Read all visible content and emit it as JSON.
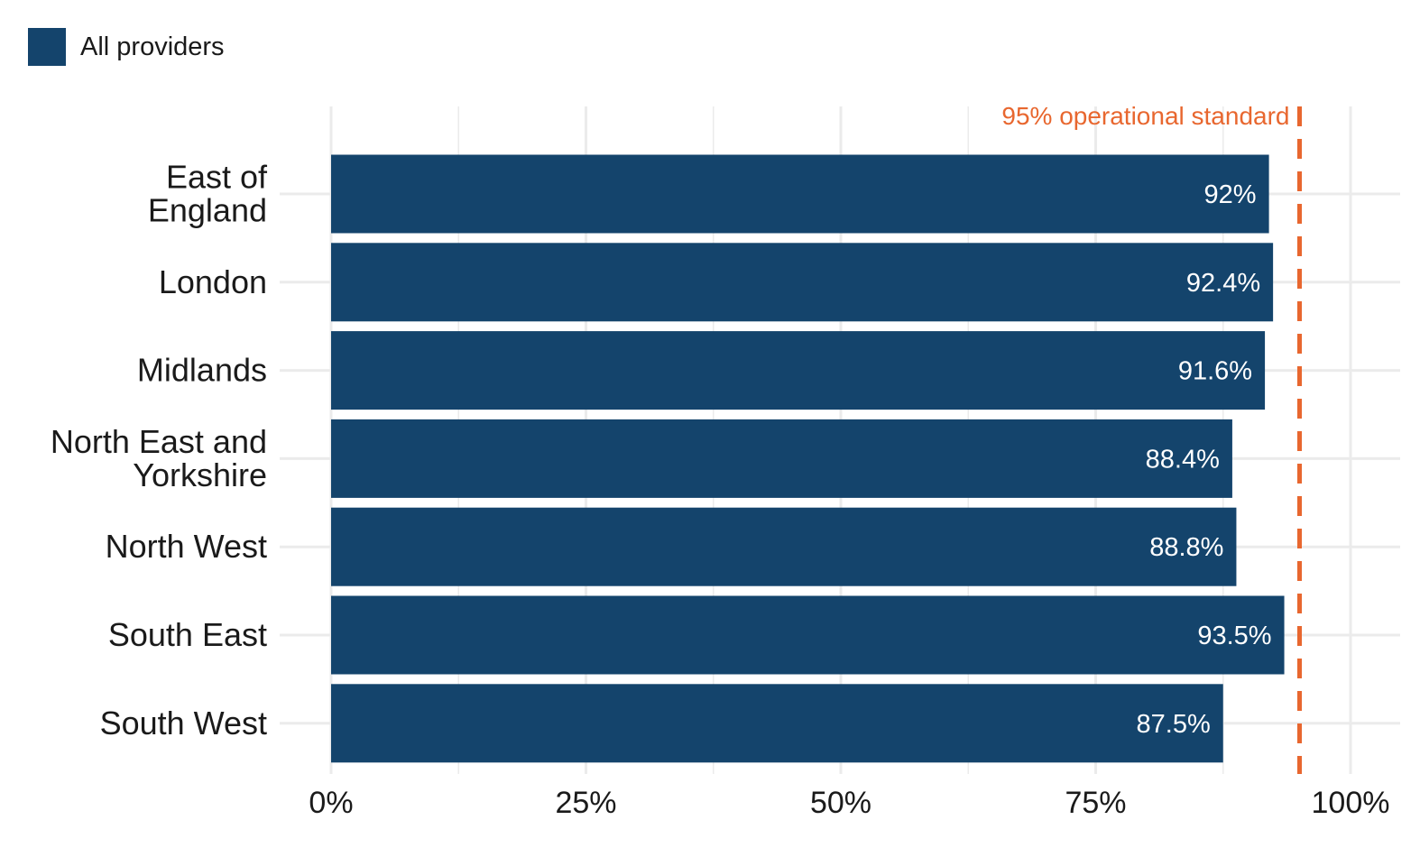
{
  "chart_data": {
    "type": "bar",
    "orientation": "horizontal",
    "categories": [
      "East of England",
      "London",
      "Midlands",
      "North East and Yorkshire",
      "North West",
      "South East",
      "South West"
    ],
    "category_lines": [
      [
        "East of",
        "England"
      ],
      [
        "London"
      ],
      [
        "Midlands"
      ],
      [
        "North East and",
        "Yorkshire"
      ],
      [
        "North West"
      ],
      [
        "South East"
      ],
      [
        "South West"
      ]
    ],
    "series": [
      {
        "name": "All providers",
        "values": [
          92.0,
          92.4,
          91.6,
          88.4,
          88.8,
          93.5,
          87.5
        ],
        "labels": [
          "92%",
          "92.4%",
          "91.6%",
          "88.4%",
          "88.8%",
          "93.5%",
          "87.5%"
        ]
      }
    ],
    "xlim": [
      0,
      100
    ],
    "x_ticks": [
      0,
      25,
      50,
      75,
      100
    ],
    "x_tick_labels": [
      "0%",
      "25%",
      "50%",
      "75%",
      "100%"
    ],
    "reference_line": {
      "value": 95,
      "label": "95% operational standard",
      "style": "dashed"
    },
    "legend_position": "top-left",
    "grid": true,
    "colors": {
      "bar": "#14446c",
      "reference": "#e8672f",
      "grid": "#ebebeb"
    }
  }
}
